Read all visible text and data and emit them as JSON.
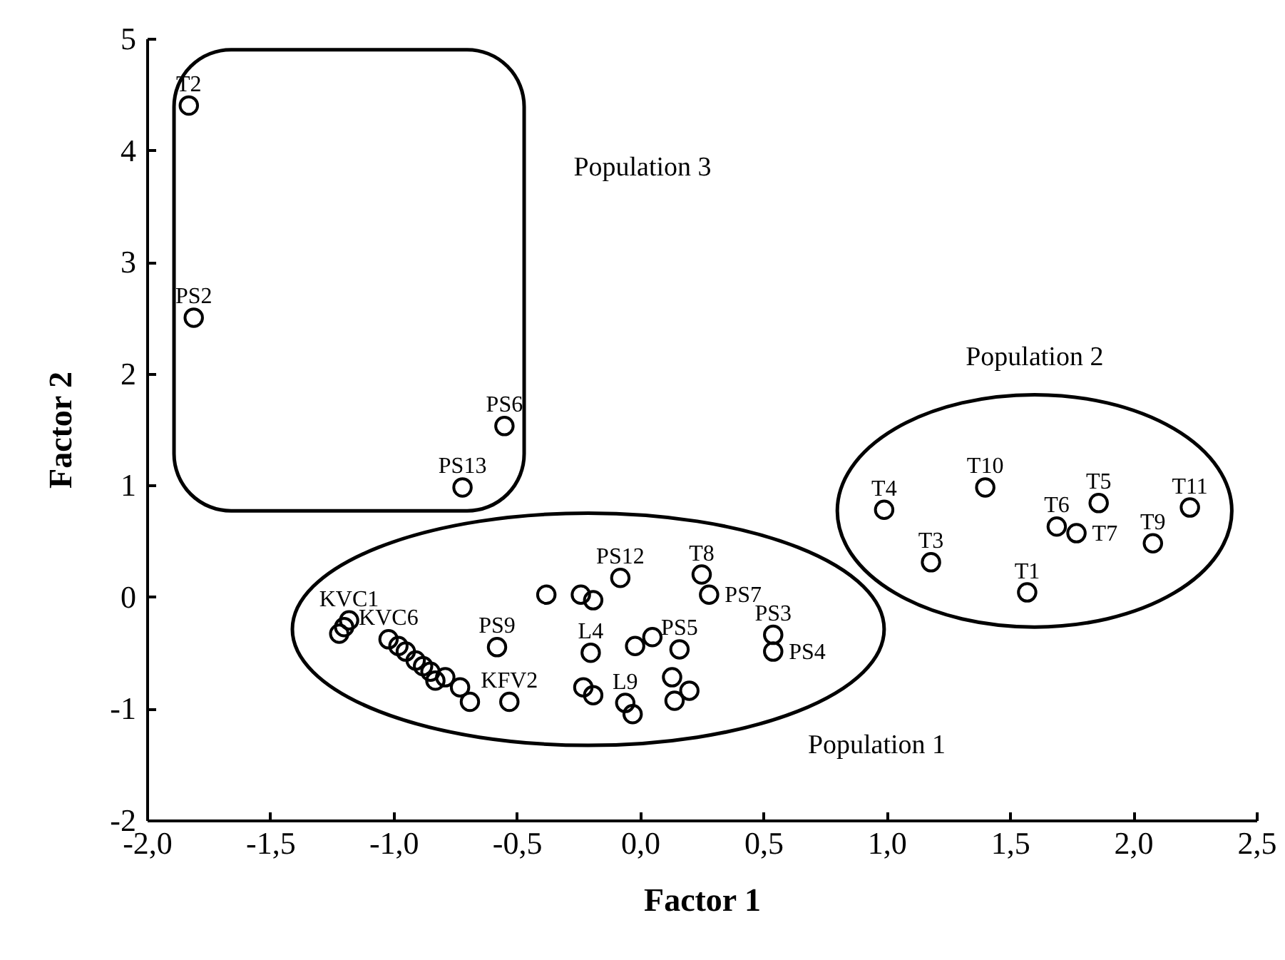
{
  "chart_data": {
    "type": "scatter",
    "xlabel": "Factor 1",
    "ylabel": "Factor 2",
    "marker": "circle",
    "grid": false,
    "xlim": [
      -2,
      2.5
    ],
    "ylim": [
      -2,
      5
    ],
    "xticks": [
      {
        "value": -2,
        "label": "-2,0"
      },
      {
        "value": -1.5,
        "label": "-1,5"
      },
      {
        "value": -1,
        "label": "-1,0"
      },
      {
        "value": -0.5,
        "label": "-0,5"
      },
      {
        "value": 0,
        "label": "0,0"
      },
      {
        "value": 0.5,
        "label": "0,5"
      },
      {
        "value": 1,
        "label": "1,0"
      },
      {
        "value": 1.5,
        "label": "1,5"
      },
      {
        "value": 2,
        "label": "2,0"
      },
      {
        "value": 2.5,
        "label": "2,5"
      }
    ],
    "yticks": [
      -2,
      -1,
      0,
      1,
      2,
      3,
      4,
      5
    ],
    "series": [
      {
        "color": "#000000",
        "x": [
          -1.83,
          -1.81,
          -0.55,
          -0.72,
          0.99,
          1.4,
          1.69,
          1.77,
          1.86,
          2.08,
          2.23,
          1.18,
          1.57,
          -1.22,
          -1.2,
          -1.18,
          -1.02,
          -0.98,
          -0.95,
          -0.91,
          -0.88,
          -0.85,
          -0.83,
          -0.79,
          -0.73,
          -0.69,
          -0.53,
          -0.58,
          -0.38,
          -0.24,
          -0.19,
          -0.08,
          0.25,
          0.28,
          0.54,
          0.54,
          -0.02,
          0.05,
          0.16,
          -0.2,
          -0.23,
          -0.19,
          -0.06,
          -0.03,
          0.13,
          0.2,
          0.14
        ],
        "values": [
          4.4,
          2.5,
          1.53,
          0.98,
          0.78,
          0.98,
          0.63,
          0.57,
          0.84,
          0.48,
          0.8,
          0.31,
          0.04,
          -0.33,
          -0.27,
          -0.21,
          -0.38,
          -0.44,
          -0.49,
          -0.57,
          -0.62,
          -0.67,
          -0.75,
          -0.72,
          -0.81,
          -0.94,
          -0.94,
          -0.45,
          0.02,
          0.02,
          -0.03,
          0.17,
          0.2,
          0.02,
          -0.34,
          -0.49,
          -0.44,
          -0.36,
          -0.47,
          -0.5,
          -0.81,
          -0.88,
          -0.95,
          -1.05,
          -0.72,
          -0.84,
          -0.93
        ]
      }
    ],
    "annotations": [
      {
        "text": "T2",
        "x": -1.83,
        "y": 4.4
      },
      {
        "text": "PS2",
        "x": -1.81,
        "y": 2.5
      },
      {
        "text": "PS6",
        "x": -0.55,
        "y": 1.53
      },
      {
        "text": "PS13",
        "x": -0.72,
        "y": 0.98
      },
      {
        "text": "T4",
        "x": 0.99,
        "y": 0.78
      },
      {
        "text": "T10",
        "x": 1.4,
        "y": 0.98
      },
      {
        "text": "T6",
        "x": 1.69,
        "y": 0.63
      },
      {
        "text": "T7",
        "x": 1.77,
        "y": 0.57
      },
      {
        "text": "T5",
        "x": 1.86,
        "y": 0.84
      },
      {
        "text": "T9",
        "x": 2.08,
        "y": 0.48
      },
      {
        "text": "T11",
        "x": 2.23,
        "y": 0.8
      },
      {
        "text": "T3",
        "x": 1.18,
        "y": 0.31
      },
      {
        "text": "T1",
        "x": 1.57,
        "y": 0.04
      },
      {
        "text": "KVC1",
        "x": -1.18,
        "y": -0.21
      },
      {
        "text": "KVC6",
        "x": -1.02,
        "y": -0.38
      },
      {
        "text": "KFV2",
        "x": -0.53,
        "y": -0.94
      },
      {
        "text": "PS9",
        "x": -0.58,
        "y": -0.45
      },
      {
        "text": "PS12",
        "x": -0.08,
        "y": 0.17
      },
      {
        "text": "T8",
        "x": 0.25,
        "y": 0.2
      },
      {
        "text": "PS7",
        "x": 0.28,
        "y": 0.02
      },
      {
        "text": "PS3",
        "x": 0.54,
        "y": -0.34
      },
      {
        "text": "PS4",
        "x": 0.54,
        "y": -0.49
      },
      {
        "text": "PS5",
        "x": 0.16,
        "y": -0.47
      },
      {
        "text": "L4",
        "x": -0.2,
        "y": -0.5
      },
      {
        "text": "L9",
        "x": -0.06,
        "y": -0.95
      },
      "Population 3",
      "Population 2",
      "Population 1"
    ]
  }
}
